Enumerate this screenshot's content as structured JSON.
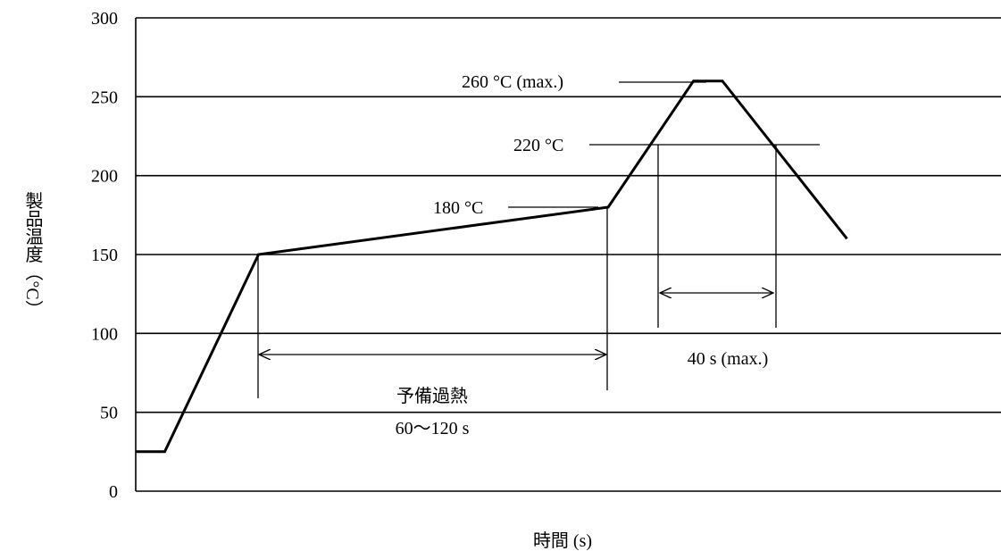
{
  "chart_data": {
    "type": "line",
    "title": "",
    "xlabel": "時間 (s)",
    "ylabel": "製品温度（°C）",
    "ylim": [
      0,
      300
    ],
    "y_ticks": [
      0,
      50,
      100,
      150,
      200,
      250,
      300
    ],
    "grid": true,
    "series": [
      {
        "x": [
          0,
          17,
          72,
          277,
          327,
          344,
          417
        ],
        "y": [
          25,
          25,
          150,
          180,
          260,
          260,
          160
        ]
      }
    ],
    "annotations": {
      "peak": "260 °C (max.)",
      "t220": "220 °C",
      "t180": "180 °C",
      "preheat_label": "予備過熱",
      "preheat_time": "60～120 s",
      "peak_time": "40 s (max.)"
    }
  }
}
